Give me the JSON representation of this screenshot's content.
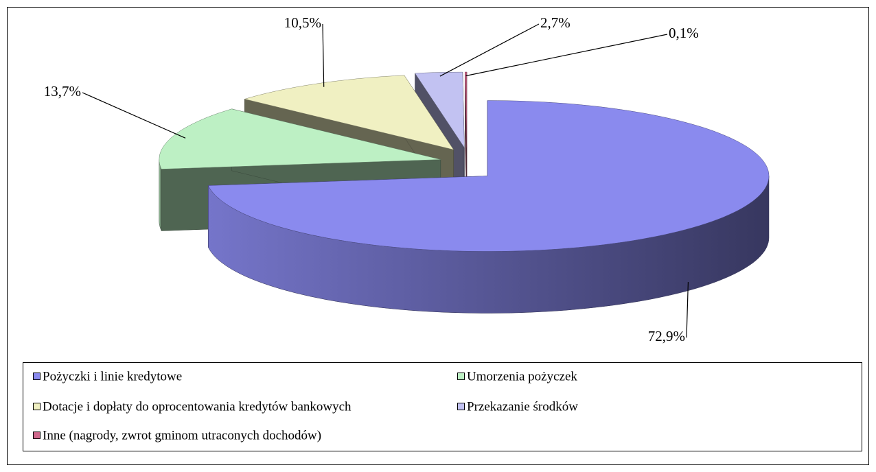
{
  "chart_data": {
    "type": "pie3d",
    "categories": [
      "Pożyczki i linie kredytowe",
      "Umorzenia pożyczek",
      "Dotacje i dopłaty do oprocentowania kredytów bankowych",
      "Przekazanie środków",
      "Inne (nagrody, zwrot gminom utraconych dochodów)"
    ],
    "values": [
      72.9,
      13.7,
      10.5,
      2.7,
      0.1
    ],
    "value_labels": [
      "72,9%",
      "13,7%",
      "10,5%",
      "2,7%",
      "0,1%"
    ],
    "colors": [
      "#8a8aee",
      "#bdf0c4",
      "#f0f0c2",
      "#c2c2f2",
      "#d0688c"
    ],
    "legend": "bottom"
  }
}
